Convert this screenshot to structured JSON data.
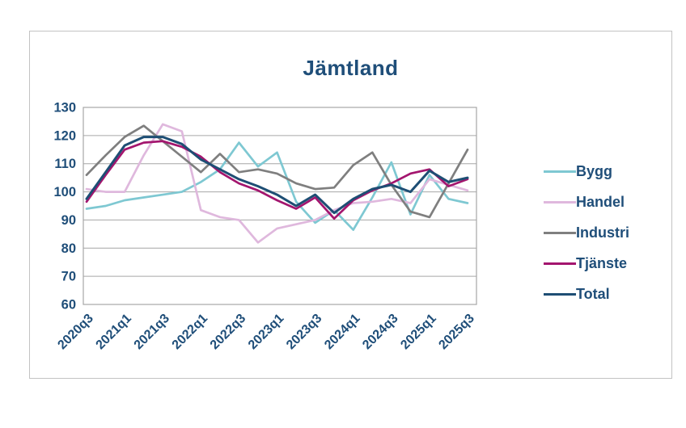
{
  "title": "Jämtland",
  "colors": {
    "text": "#1F4E79",
    "grid": "#a6a6a6",
    "plot_border": "#a6a6a6",
    "frame_border": "#c3c3c3"
  },
  "chart_data": {
    "type": "line",
    "title": "Jämtland",
    "grid": "horizontal",
    "x_axis": {
      "categories": [
        "2020q3",
        "2020q4",
        "2021q1",
        "2021q2",
        "2021q3",
        "2021q4",
        "2022q1",
        "2022q2",
        "2022q3",
        "2022q4",
        "2023q1",
        "2023q2",
        "2023q3",
        "2023q4",
        "2024q1",
        "2024q2",
        "2024q3",
        "2024q4",
        "2025q1",
        "2025q2",
        "2025q3"
      ],
      "tick_label_indices": [
        0,
        2,
        4,
        6,
        8,
        10,
        12,
        14,
        16,
        18,
        20
      ],
      "tick_labels": [
        "2020q3",
        "2021q1",
        "2021q3",
        "2022q1",
        "2022q3",
        "2023q1",
        "2023q3",
        "2024q1",
        "2024q3",
        "2025q1",
        "2025q3"
      ]
    },
    "y_axis": {
      "min": 60,
      "max": 130,
      "step": 10,
      "tick_labels": [
        "60",
        "70",
        "80",
        "90",
        "100",
        "110",
        "120",
        "130"
      ]
    },
    "legend": {
      "position": "right"
    },
    "series": [
      {
        "name": "Bygg",
        "color": "#7ec8d2",
        "values": [
          94,
          95,
          97,
          98,
          99,
          100,
          103.5,
          108,
          117.5,
          109,
          114,
          96.5,
          89,
          93.5,
          86.5,
          98,
          110.5,
          92,
          106,
          97.5,
          96
        ]
      },
      {
        "name": "Handel",
        "color": "#dfb8dd",
        "values": [
          101,
          100,
          100,
          113,
          124,
          121.5,
          93.5,
          91,
          90,
          82,
          87,
          88.5,
          90,
          93.5,
          96,
          96.5,
          97.5,
          96,
          104.5,
          102.5,
          100.5
        ]
      },
      {
        "name": "Industri",
        "color": "#7f7f7f",
        "values": [
          106,
          113,
          119.5,
          123.5,
          118,
          112.5,
          107,
          113.5,
          107,
          108,
          106.5,
          103,
          101,
          101.5,
          109.5,
          114,
          102.5,
          93,
          91,
          103,
          115
        ]
      },
      {
        "name": "Tjänste",
        "color": "#a3156e",
        "values": [
          96.5,
          106,
          115,
          117.5,
          118,
          116,
          112.5,
          107,
          103,
          100.5,
          97,
          94,
          98,
          90.5,
          97,
          100.5,
          103,
          106.5,
          108,
          102,
          104.5
        ]
      },
      {
        "name": "Total",
        "color": "#1e4e74",
        "values": [
          97.5,
          107,
          116.5,
          119.5,
          119.5,
          117,
          111.5,
          108,
          104.5,
          102,
          99,
          95,
          99,
          92.5,
          97.5,
          101,
          102.5,
          100,
          107.5,
          103.5,
          105
        ]
      }
    ]
  }
}
